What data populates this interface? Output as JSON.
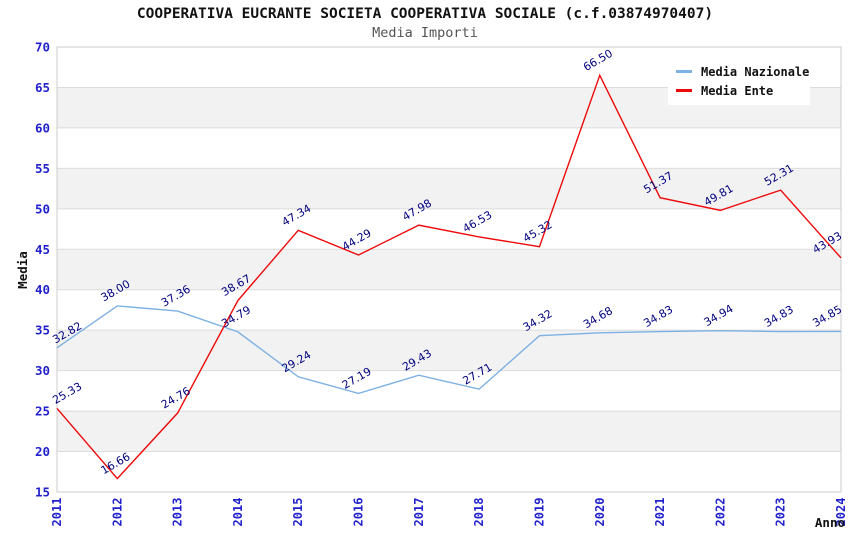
{
  "header": {
    "title": "COOPERATIVA EUCRANTE SOCIETA COOPERATIVA SOCIALE (c.f.03874970407)",
    "subtitle": "Media Importi"
  },
  "legend": {
    "items": [
      {
        "label": "Media Nazionale",
        "color": "#7DB1E3"
      },
      {
        "label": "Media Ente",
        "color": "#EE0A0A"
      }
    ]
  },
  "chart_data": {
    "type": "line",
    "title": "COOPERATIVA EUCRANTE SOCIETA COOPERATIVA SOCIALE (c.f.03874970407)",
    "subtitle": "Media Importi",
    "xlabel": "Anno",
    "ylabel": "Media",
    "categories": [
      "2011",
      "2012",
      "2013",
      "2014",
      "2015",
      "2016",
      "2017",
      "2018",
      "2019",
      "2020",
      "2021",
      "2022",
      "2023",
      "2024"
    ],
    "series": [
      {
        "name": "Media Nazionale",
        "color": "#7DB1E3",
        "values": [
          32.82,
          38.0,
          37.36,
          34.79,
          29.24,
          27.19,
          29.43,
          27.71,
          34.32,
          34.68,
          34.83,
          34.94,
          34.83,
          34.85
        ]
      },
      {
        "name": "Media Ente",
        "color": "#EE0A0A",
        "values": [
          25.33,
          16.66,
          24.76,
          38.67,
          47.34,
          44.29,
          47.98,
          46.53,
          45.32,
          66.5,
          51.37,
          49.81,
          52.31,
          43.93
        ]
      }
    ],
    "ylim": [
      15,
      70
    ],
    "ytick_step": 5,
    "yticks": [
      15,
      20,
      25,
      30,
      35,
      40,
      45,
      50,
      55,
      60,
      65,
      70
    ],
    "grid": true,
    "banded_background": true,
    "legend_position": "top-right",
    "colors": {
      "tick_label": "#2222CC",
      "point_label": "#000080",
      "band": "#F2F2F2",
      "gridline": "#DCDCDC",
      "plot_border": "#CCCCCC",
      "axis_title": "#111111"
    }
  }
}
